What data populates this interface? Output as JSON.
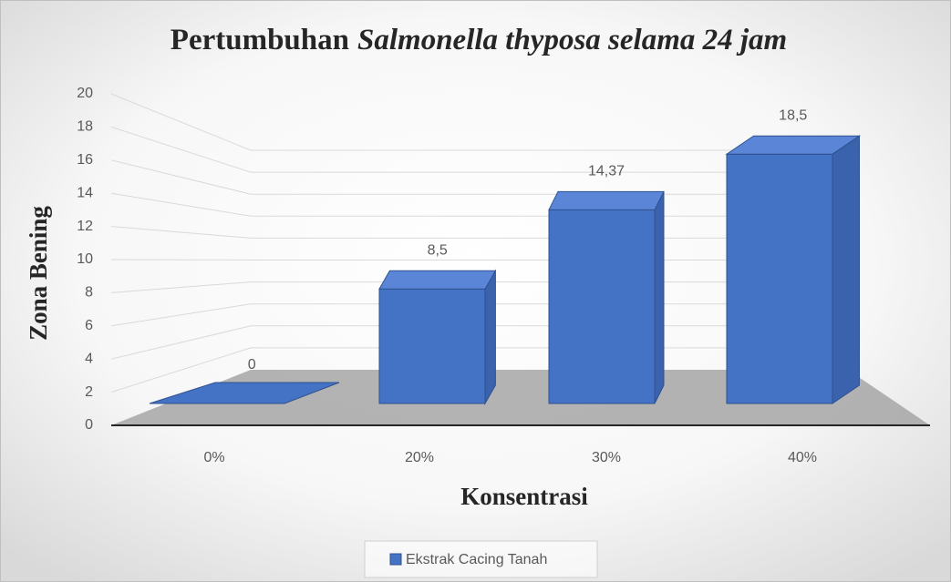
{
  "chart_data": {
    "type": "bar3d",
    "title": [
      "Pertumbuhan",
      "Salmonella thyposa selama 24 jam"
    ],
    "x_label": "Konsentrasi",
    "y_label": "Zona Bening",
    "categories": [
      "0%",
      "20%",
      "30%",
      "40%"
    ],
    "series": [
      {
        "name": "Ekstrak Cacing Tanah",
        "color": "#4472c4",
        "values": [
          0,
          8.5,
          14.37,
          18.5
        ],
        "value_labels": [
          "0",
          "8,5",
          "14,37",
          "18,5"
        ]
      }
    ],
    "ylim": [
      0,
      20
    ],
    "yticks": [
      0,
      2,
      4,
      6,
      8,
      10,
      12,
      14,
      16,
      18,
      20
    ],
    "grid": true,
    "legend": "bottom"
  }
}
